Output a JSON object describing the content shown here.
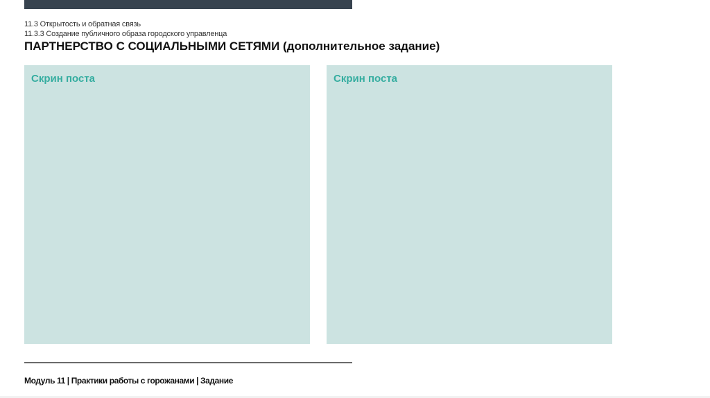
{
  "header": {
    "section": "11.3 Открытость и обратная связь",
    "subsection": "11.3.3 Создание публичного образа городского управленца",
    "title": "ПАРТНЕРСТВО С СОЦИАЛЬНЫМИ СЕТЯМИ (дополнительное задание)"
  },
  "placeholders": [
    {
      "label": "Скрин поста"
    },
    {
      "label": "Скрин поста"
    }
  ],
  "footer": {
    "text": "Модуль 11 | Практики работы с горожанами | Задание"
  },
  "colors": {
    "topbar": "#37434f",
    "placeholder_bg": "#cce3e1",
    "placeholder_text": "#35ada0"
  }
}
